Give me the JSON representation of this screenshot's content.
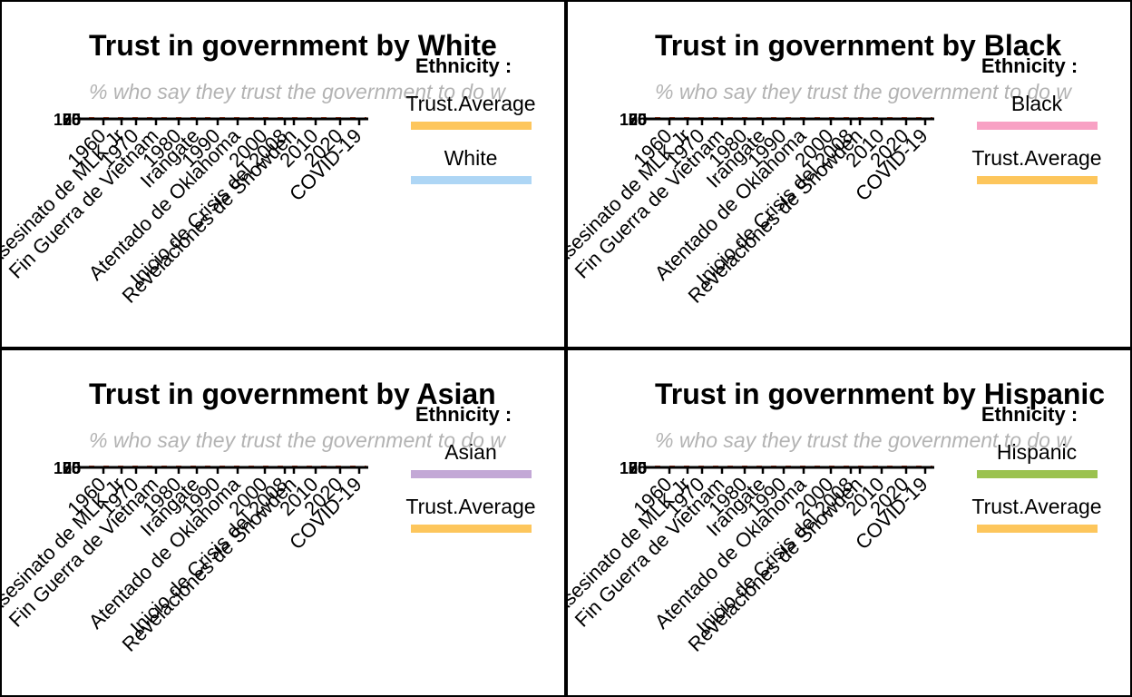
{
  "legend_title": "Ethnicity :",
  "chart_data": [
    {
      "type": "line",
      "title": "Trust in government by White",
      "subtitle": "% who say they trust the government to do w",
      "x_ticks": [
        "1960",
        "Asesinato de MLK Jr",
        "1970",
        "Fin Guerra de Vietnam",
        "1980",
        "Irangate",
        "1990",
        "Atentado de Oklahoma",
        "2000",
        "Inicio de Crisis del 2008",
        "Revelaciones de Snowden",
        "2010",
        "2020",
        "COVID-19"
      ],
      "y_ticks": [
        "0",
        "25",
        "50",
        "75",
        "100"
      ],
      "ylim": [
        0,
        100
      ],
      "legend": [
        {
          "name": "Trust.Average",
          "color": "#fdc65c"
        },
        {
          "name": "White",
          "color": "#aed6f5"
        }
      ]
    },
    {
      "type": "line",
      "title": "Trust in government by Black",
      "subtitle": "% who say they trust the government to do w",
      "x_ticks": [
        "1960",
        "Asesinato de MLK Jr",
        "1970",
        "Fin Guerra de Vietnam",
        "1980",
        "Irangate",
        "1990",
        "Atentado de Oklahoma",
        "2000",
        "Inicio de Crisis del 2008",
        "Revelaciones de Snowden",
        "2010",
        "2020",
        "COVID-19"
      ],
      "y_ticks": [
        "0",
        "25",
        "50",
        "75",
        "100"
      ],
      "ylim": [
        0,
        100
      ],
      "legend": [
        {
          "name": "Black",
          "color": "#f8a1c4"
        },
        {
          "name": "Trust.Average",
          "color": "#fdc65c"
        }
      ]
    },
    {
      "type": "line",
      "title": "Trust in government by Asian",
      "subtitle": "% who say they trust the government to do w",
      "x_ticks": [
        "1960",
        "Asesinato de MLK Jr",
        "1970",
        "Fin Guerra de Vietnam",
        "1980",
        "Irangate",
        "1990",
        "Atentado de Oklahoma",
        "2000",
        "Inicio de Crisis del 2008",
        "Revelaciones de Snowden",
        "2010",
        "2020",
        "COVID-19"
      ],
      "y_ticks": [
        "0",
        "25",
        "50",
        "75",
        "100"
      ],
      "ylim": [
        0,
        100
      ],
      "legend": [
        {
          "name": "Asian",
          "color": "#c3a8d6"
        },
        {
          "name": "Trust.Average",
          "color": "#fdc65c"
        }
      ]
    },
    {
      "type": "line",
      "title": "Trust in government by Hispanic",
      "subtitle": "% who say they trust the government to do w",
      "x_ticks": [
        "1960",
        "Asesinato de MLK Jr",
        "1970",
        "Fin Guerra de Vietnam",
        "1980",
        "Irangate",
        "1990",
        "Atentado de Oklahoma",
        "2000",
        "Inicio de Crisis del 2008",
        "Revelaciones de Snowden",
        "2010",
        "2020",
        "COVID-19"
      ],
      "y_ticks": [
        "0",
        "25",
        "50",
        "75",
        "100"
      ],
      "ylim": [
        0,
        100
      ],
      "legend": [
        {
          "name": "Hispanic",
          "color": "#9bc24f"
        },
        {
          "name": "Trust.Average",
          "color": "#fdc65c"
        }
      ]
    }
  ]
}
